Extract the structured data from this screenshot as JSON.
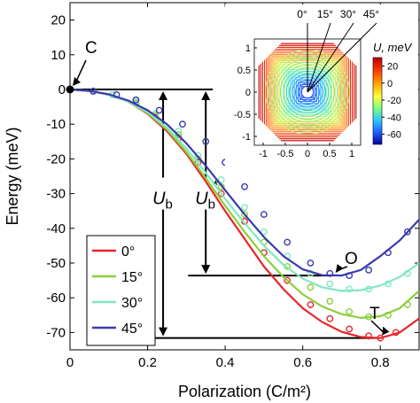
{
  "chart_data": {
    "type": "line",
    "title": "",
    "xlabel": "Polarization (C/m²)",
    "ylabel": "Energy (meV)",
    "xlim": [
      0,
      0.9
    ],
    "ylim": [
      -75,
      25
    ],
    "x_ticks": [
      0,
      0.2,
      0.4,
      0.6,
      0.8
    ],
    "x_tick_labels": [
      "0",
      "0.2",
      "0.4",
      "0.6",
      "0.8"
    ],
    "y_ticks": [
      20,
      10,
      0,
      -10,
      -20,
      -30,
      -40,
      -50,
      -60,
      -70
    ],
    "y_tick_labels": [
      "20",
      "10",
      "0",
      "-10",
      "-20",
      "-30",
      "-40",
      "-50",
      "-60",
      "-70"
    ],
    "grid": false,
    "legend": {
      "placement": "bottom-left",
      "entries": [
        "0°",
        "15°",
        "30°",
        "45°"
      ]
    },
    "series": [
      {
        "name": "0°",
        "color": "#e8262b",
        "line": {
          "x": [
            0,
            0.05,
            0.1,
            0.15,
            0.2,
            0.25,
            0.3,
            0.35,
            0.4,
            0.45,
            0.5,
            0.55,
            0.6,
            0.65,
            0.7,
            0.75,
            0.8,
            0.85,
            0.9
          ],
          "y": [
            0,
            -0.4,
            -1.5,
            -3.5,
            -7,
            -12,
            -18.5,
            -26.5,
            -35,
            -43,
            -51,
            -57.5,
            -63,
            -67,
            -69.8,
            -71.3,
            -71.6,
            -70,
            -66
          ]
        },
        "points": {
          "x": [
            0.06,
            0.11,
            0.17,
            0.22,
            0.28,
            0.33,
            0.39,
            0.45,
            0.5,
            0.56,
            0.62,
            0.67,
            0.72,
            0.77,
            0.8,
            0.84
          ],
          "y": [
            -0.5,
            -1.5,
            -4,
            -8,
            -14,
            -21,
            -30,
            -38,
            -47,
            -55,
            -62,
            -66,
            -69,
            -71,
            -71.6,
            -70
          ]
        }
      },
      {
        "name": "15°",
        "color": "#8ccf3a",
        "line": {
          "x": [
            0,
            0.05,
            0.1,
            0.15,
            0.2,
            0.25,
            0.3,
            0.35,
            0.4,
            0.45,
            0.5,
            0.55,
            0.6,
            0.65,
            0.7,
            0.75,
            0.8,
            0.85,
            0.9
          ],
          "y": [
            0,
            -0.4,
            -1.5,
            -3.5,
            -6.8,
            -11.5,
            -18,
            -25.5,
            -33.5,
            -41,
            -48,
            -54,
            -59,
            -62.5,
            -64.7,
            -65.8,
            -65.3,
            -63,
            -58
          ]
        },
        "points": {
          "x": [
            0.06,
            0.11,
            0.17,
            0.22,
            0.28,
            0.33,
            0.39,
            0.45,
            0.5,
            0.56,
            0.62,
            0.67,
            0.72,
            0.77,
            0.82,
            0.87
          ],
          "y": [
            -0.5,
            -1.5,
            -4,
            -7.5,
            -13,
            -20,
            -28,
            -36,
            -44,
            -51,
            -57,
            -61,
            -64,
            -65.5,
            -65,
            -62
          ]
        }
      },
      {
        "name": "30°",
        "color": "#80e8c0",
        "line": {
          "x": [
            0,
            0.05,
            0.1,
            0.15,
            0.2,
            0.25,
            0.3,
            0.35,
            0.4,
            0.45,
            0.5,
            0.55,
            0.6,
            0.65,
            0.7,
            0.75,
            0.8,
            0.85,
            0.9
          ],
          "y": [
            0,
            -0.4,
            -1.5,
            -3.5,
            -6.5,
            -11,
            -17,
            -24,
            -31.5,
            -38.5,
            -45,
            -50.5,
            -54.5,
            -57,
            -58,
            -57.8,
            -56.5,
            -54,
            -50
          ]
        },
        "points": {
          "x": [
            0.06,
            0.11,
            0.17,
            0.22,
            0.28,
            0.33,
            0.39,
            0.45,
            0.5,
            0.56,
            0.62,
            0.67,
            0.72,
            0.77,
            0.82,
            0.87
          ],
          "y": [
            -0.5,
            -1.5,
            -3.5,
            -7,
            -12,
            -19,
            -26,
            -34,
            -41,
            -48,
            -53,
            -56,
            -57.5,
            -57.5,
            -56,
            -53
          ]
        }
      },
      {
        "name": "45°",
        "color": "#3a3aad",
        "line": {
          "x": [
            0,
            0.05,
            0.1,
            0.15,
            0.2,
            0.25,
            0.3,
            0.35,
            0.4,
            0.45,
            0.5,
            0.55,
            0.6,
            0.65,
            0.7,
            0.75,
            0.8,
            0.85,
            0.9
          ],
          "y": [
            0,
            -0.4,
            -1.4,
            -3.2,
            -6,
            -10,
            -15.5,
            -22,
            -29,
            -36,
            -42.5,
            -48,
            -51.8,
            -53.5,
            -53.6,
            -52,
            -48,
            -43.5,
            -37.5
          ]
        },
        "points": {
          "x": [
            0.06,
            0.12,
            0.17,
            0.23,
            0.29,
            0.35,
            0.4,
            0.45,
            0.5,
            0.56,
            0.62,
            0.67,
            0.72,
            0.77,
            0.82,
            0.87
          ],
          "y": [
            -0.5,
            -1.5,
            -3,
            -6,
            -10,
            -15,
            -21,
            -28,
            -36,
            -44,
            -50,
            -53,
            -53.6,
            -52,
            -47,
            -41
          ]
        }
      }
    ],
    "annotations": [
      {
        "label": "C",
        "x": 0,
        "y": 0
      },
      {
        "label": "O",
        "x": 0.68,
        "y": -53.6
      },
      {
        "label": "T",
        "x": 0.8,
        "y": -71.6
      }
    ],
    "energy_bars": [
      {
        "label": "U",
        "subscript": "b",
        "superscript": "",
        "x": 0.24,
        "y_top": 0,
        "y_bottom": -71.6
      },
      {
        "label": "U",
        "subscript": "b",
        "superscript": "*",
        "x": 0.35,
        "y_top": 0,
        "y_bottom": -53.6
      }
    ],
    "inset": {
      "title": "U, meV",
      "angle_labels": [
        "0°",
        "15°",
        "30°",
        "45°"
      ],
      "xlim": [
        -1.2,
        1.2
      ],
      "ylim": [
        -1.2,
        1.2
      ],
      "x_tick_labels": [
        "-1",
        "-0.5",
        "0",
        "0.5",
        "1"
      ],
      "y_tick_labels": [
        "1",
        "0.5",
        "0",
        "-0.5",
        "-1"
      ],
      "colorbar_ticks": [
        "20",
        "0",
        "-20",
        "-40",
        "-60"
      ],
      "colorbar_range": [
        -72,
        30
      ]
    }
  }
}
